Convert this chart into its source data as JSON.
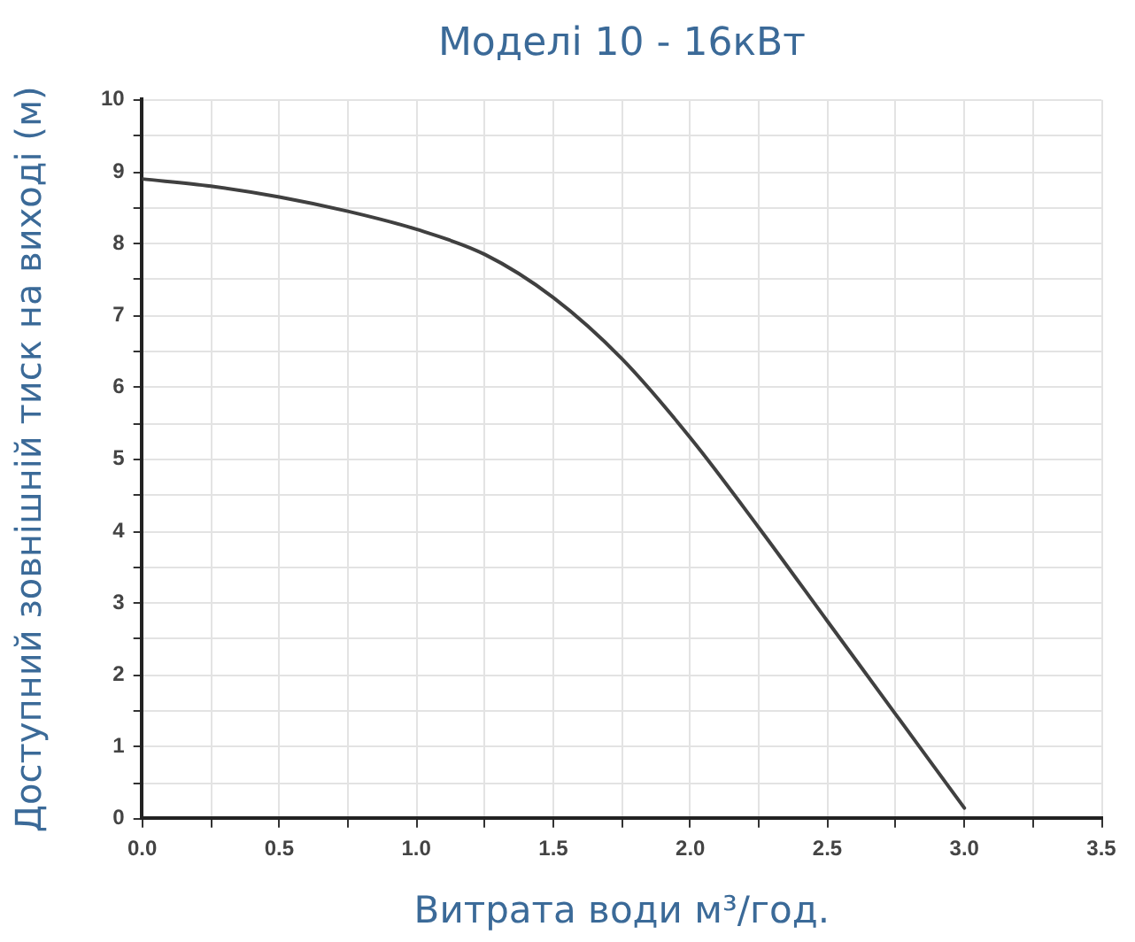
{
  "chart_data": {
    "type": "line",
    "title": "Моделі 10 - 16кВт",
    "xlabel": "Витрата води м³/год.",
    "ylabel": "Доступний зовнішній тиск на виході (м)",
    "x": [
      0,
      0.25,
      0.5,
      0.75,
      1,
      1.25,
      1.5,
      1.75,
      2,
      2.25,
      2.5,
      2.75,
      3
    ],
    "values": [
      8.9,
      8.8,
      8.65,
      8.45,
      8.2,
      7.85,
      7.25,
      6.4,
      5.3,
      4.05,
      2.75,
      1.45,
      0.15
    ],
    "color": "#404040",
    "xlim": [
      0,
      3.5
    ],
    "ylim": [
      0,
      10
    ],
    "xticks": [
      {
        "value": 0,
        "label": "0.0"
      },
      {
        "value": 0.25,
        "label": null
      },
      0.5,
      {
        "value": 0.75,
        "label": null
      },
      {
        "value": 1,
        "label": "1.0"
      },
      {
        "value": 1.25,
        "label": null
      },
      1.5,
      {
        "value": 1.75,
        "label": null
      },
      {
        "value": 2,
        "label": "2.0"
      },
      {
        "value": 2.25,
        "label": null
      },
      2.5,
      {
        "value": 2.75,
        "label": null
      },
      {
        "value": 3,
        "label": "3.0"
      },
      {
        "value": 3.25,
        "label": null
      },
      3.5
    ],
    "yticks": [
      0,
      {
        "value": 0.5,
        "label": null
      },
      1,
      {
        "value": 1.5,
        "label": null
      },
      2,
      {
        "value": 2.5,
        "label": null
      },
      3,
      {
        "value": 3.5,
        "label": null
      },
      4,
      {
        "value": 4.5,
        "label": null
      },
      5,
      {
        "value": 5.5,
        "label": null
      },
      6,
      {
        "value": 6.5,
        "label": null
      },
      7,
      {
        "value": 7.5,
        "label": null
      },
      8,
      {
        "value": 8.5,
        "label": null
      },
      9,
      {
        "value": 9.5,
        "label": null
      },
      10
    ],
    "grid": true,
    "marker": "none",
    "line_style": "solid"
  }
}
